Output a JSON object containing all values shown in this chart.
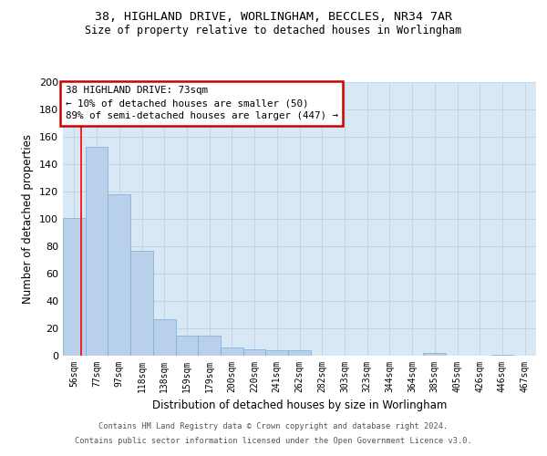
{
  "title_line1": "38, HIGHLAND DRIVE, WORLINGHAM, BECCLES, NR34 7AR",
  "title_line2": "Size of property relative to detached houses in Worlingham",
  "xlabel": "Distribution of detached houses by size in Worlingham",
  "ylabel": "Number of detached properties",
  "categories": [
    "56sqm",
    "77sqm",
    "97sqm",
    "118sqm",
    "138sqm",
    "159sqm",
    "179sqm",
    "200sqm",
    "220sqm",
    "241sqm",
    "262sqm",
    "282sqm",
    "303sqm",
    "323sqm",
    "344sqm",
    "364sqm",
    "385sqm",
    "405sqm",
    "426sqm",
    "446sqm",
    "467sqm"
  ],
  "values": [
    101,
    153,
    118,
    77,
    27,
    15,
    15,
    6,
    5,
    4,
    4,
    0,
    0,
    0,
    0,
    0,
    2,
    0,
    0,
    1,
    0
  ],
  "bar_color": "#b8d0ea",
  "bar_edge_color": "#7aadd4",
  "grid_color": "#c0d5e8",
  "background_color": "#d8e8f4",
  "annotation_title": "38 HIGHLAND DRIVE: 73sqm",
  "annotation_line1": "← 10% of detached houses are smaller (50)",
  "annotation_line2": "89% of semi-detached houses are larger (447) →",
  "annotation_box_color": "#ffffff",
  "annotation_box_edge": "#cc0000",
  "footer_line1": "Contains HM Land Registry data © Crown copyright and database right 2024.",
  "footer_line2": "Contains public sector information licensed under the Open Government Licence v3.0.",
  "ylim": [
    0,
    200
  ],
  "yticks": [
    0,
    20,
    40,
    60,
    80,
    100,
    120,
    140,
    160,
    180,
    200
  ],
  "red_line_x": 0.31
}
